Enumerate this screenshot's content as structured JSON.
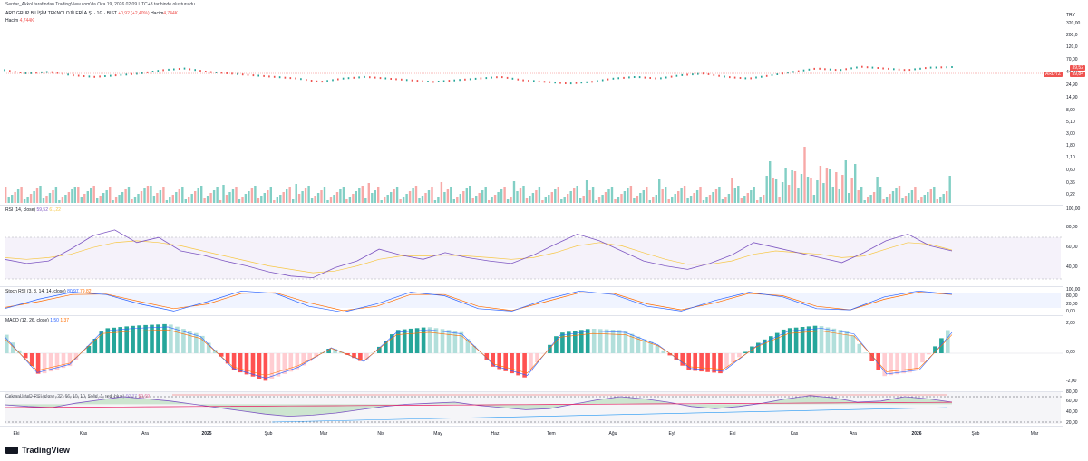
{
  "header": {
    "published": "Serdar_Akkol tarafından TradingView.com'da Oca 19, 2026 02:09 UTC+3 tarihinde oluşturuldu",
    "symbol": "ARD GRUP BİLİŞİM TEKNOLOJİLERİ A.Ş. · 1G · BIST",
    "change": "+0,92 (+2,40%)",
    "volume_label": "Hacim",
    "volume_value": "4,744K",
    "hacim_row_label": "Hacim",
    "hacim_row_value": "4,744K",
    "currency": "TRY"
  },
  "price_axis": [
    "320,00",
    "200,0",
    "120,0",
    "70,00",
    "44,50",
    "24,90",
    "14,90",
    "8,90",
    "5,10",
    "3,00",
    "1,80",
    "1,10",
    "0,60",
    "0,36",
    "0,22"
  ],
  "price_tags": {
    "ticker": "ARDYZ",
    "price1": "39,52",
    "price2": "39,84"
  },
  "rsi": {
    "label": "RSI (14, close)",
    "value1": "59,52",
    "value2": "61,22",
    "axis": [
      "100,00",
      "80,00",
      "60,00",
      "40,00"
    ]
  },
  "stoch": {
    "label": "Stoch RSI (3, 3, 14, 14, close)",
    "value1": "80,97",
    "value2": "79,82",
    "axis": [
      "100,00",
      "80,00",
      "20,00",
      "0,00"
    ]
  },
  "macd": {
    "label": "MACD (12, 26, close)",
    "value1": "1,50",
    "value2": "1,37",
    "axis": [
      "2,00",
      "0,00",
      "-2,00"
    ]
  },
  "cmrsi": {
    "label": "CakmaUstaD-RSI (close, 22, 66, 10, 10, Solid, 1, red, blue)",
    "value1": "60,37",
    "value2": "59,69",
    "axis": [
      "80,00",
      "60,00",
      "40,00",
      "20,00"
    ]
  },
  "x_axis": [
    "Eki",
    "Kas",
    "Ara",
    "2025",
    "Şub",
    "Mar",
    "Nis",
    "May",
    "Haz",
    "Tem",
    "Ağu",
    "Eyl",
    "Eki",
    "Kas",
    "Ara",
    "2026",
    "Şub",
    "Mar"
  ],
  "brand": "TradingView",
  "colors": {
    "up": "#26a69a",
    "down": "#ef5350",
    "rsi": "#7e57c2",
    "signal": "#f7c744"
  },
  "chart_data": [
    {
      "type": "line",
      "title": "ARD GRUP BİLİŞİM TEKNOLOJİLERİ A.Ş. · 1G · BIST",
      "series": [
        {
          "name": "Price",
          "values": [
            38,
            36,
            37,
            35,
            34,
            35,
            36,
            38,
            39,
            37,
            36,
            35,
            34,
            33,
            31,
            33,
            34,
            33,
            32,
            31,
            32,
            33,
            34,
            32,
            31,
            30,
            31,
            33,
            34,
            33,
            35,
            36,
            34,
            33,
            35,
            37,
            39,
            38,
            40,
            39,
            38,
            39.5,
            39.84
          ]
        }
      ],
      "ylim": [
        0.22,
        320
      ]
    },
    {
      "type": "line",
      "title": "RSI (14, close)",
      "series": [
        {
          "name": "RSI",
          "values": [
            50,
            45,
            48,
            62,
            78,
            85,
            70,
            76,
            60,
            55,
            48,
            42,
            35,
            30,
            28,
            40,
            48,
            62,
            55,
            50,
            58,
            52,
            48,
            45,
            55,
            68,
            80,
            72,
            60,
            48,
            42,
            38,
            45,
            55,
            70,
            64,
            58,
            52,
            46,
            58,
            72,
            80,
            66,
            60
          ]
        },
        {
          "name": "MA",
          "values": [
            52,
            50,
            52,
            56,
            64,
            70,
            72,
            70,
            66,
            60,
            54,
            48,
            42,
            38,
            34,
            36,
            42,
            50,
            54,
            54,
            55,
            54,
            52,
            50,
            52,
            58,
            66,
            70,
            66,
            58,
            50,
            44,
            44,
            48,
            56,
            60,
            58,
            56,
            52,
            54,
            62,
            70,
            68,
            61
          ]
        }
      ],
      "ylim": [
        20,
        100
      ]
    },
    {
      "type": "line",
      "title": "Stoch RSI (3, 3, 14, 14, close)",
      "series": [
        {
          "name": "K",
          "values": [
            20,
            60,
            90,
            80,
            40,
            10,
            50,
            95,
            85,
            30,
            5,
            40,
            90,
            75,
            20,
            10,
            60,
            95,
            80,
            30,
            10,
            55,
            90,
            70,
            20,
            15,
            70,
            95,
            81
          ]
        },
        {
          "name": "D",
          "values": [
            25,
            50,
            80,
            82,
            50,
            20,
            40,
            85,
            88,
            45,
            12,
            30,
            80,
            80,
            30,
            12,
            50,
            88,
            85,
            40,
            15,
            45,
            85,
            75,
            30,
            15,
            60,
            90,
            80
          ]
        }
      ],
      "ylim": [
        0,
        100
      ]
    },
    {
      "type": "bar",
      "title": "MACD (12, 26, close)",
      "series": [
        {
          "name": "Histogram",
          "values": [
            1.2,
            -1.4,
            -0.8,
            1.6,
            1.8,
            1.9,
            1.2,
            -1.1,
            -1.8,
            -1.0,
            0.4,
            -0.6,
            1.5,
            1.7,
            1.4,
            -0.9,
            -1.6,
            1.3,
            1.6,
            1.5,
            0.6,
            -1.1,
            -1.3,
            0.5,
            1.6,
            1.8,
            1.4,
            -1.5,
            -1.2,
            1.5
          ]
        }
      ],
      "ylim": [
        -2,
        2
      ]
    },
    {
      "type": "area",
      "title": "CakmaUstaD-RSI (close, 22, 66, 10, 10, Solid, 1, red, blue)",
      "series": [
        {
          "name": "RSI",
          "values": [
            55,
            52,
            50,
            58,
            64,
            70,
            66,
            62,
            56,
            50,
            44,
            38,
            34,
            36,
            40,
            46,
            52,
            56,
            58,
            60,
            54,
            50,
            46,
            48,
            56,
            64,
            70,
            66,
            60,
            52,
            48,
            52,
            58,
            66,
            72,
            68,
            60,
            62,
            70,
            66,
            60
          ]
        }
      ],
      "ylim": [
        20,
        80
      ]
    }
  ]
}
